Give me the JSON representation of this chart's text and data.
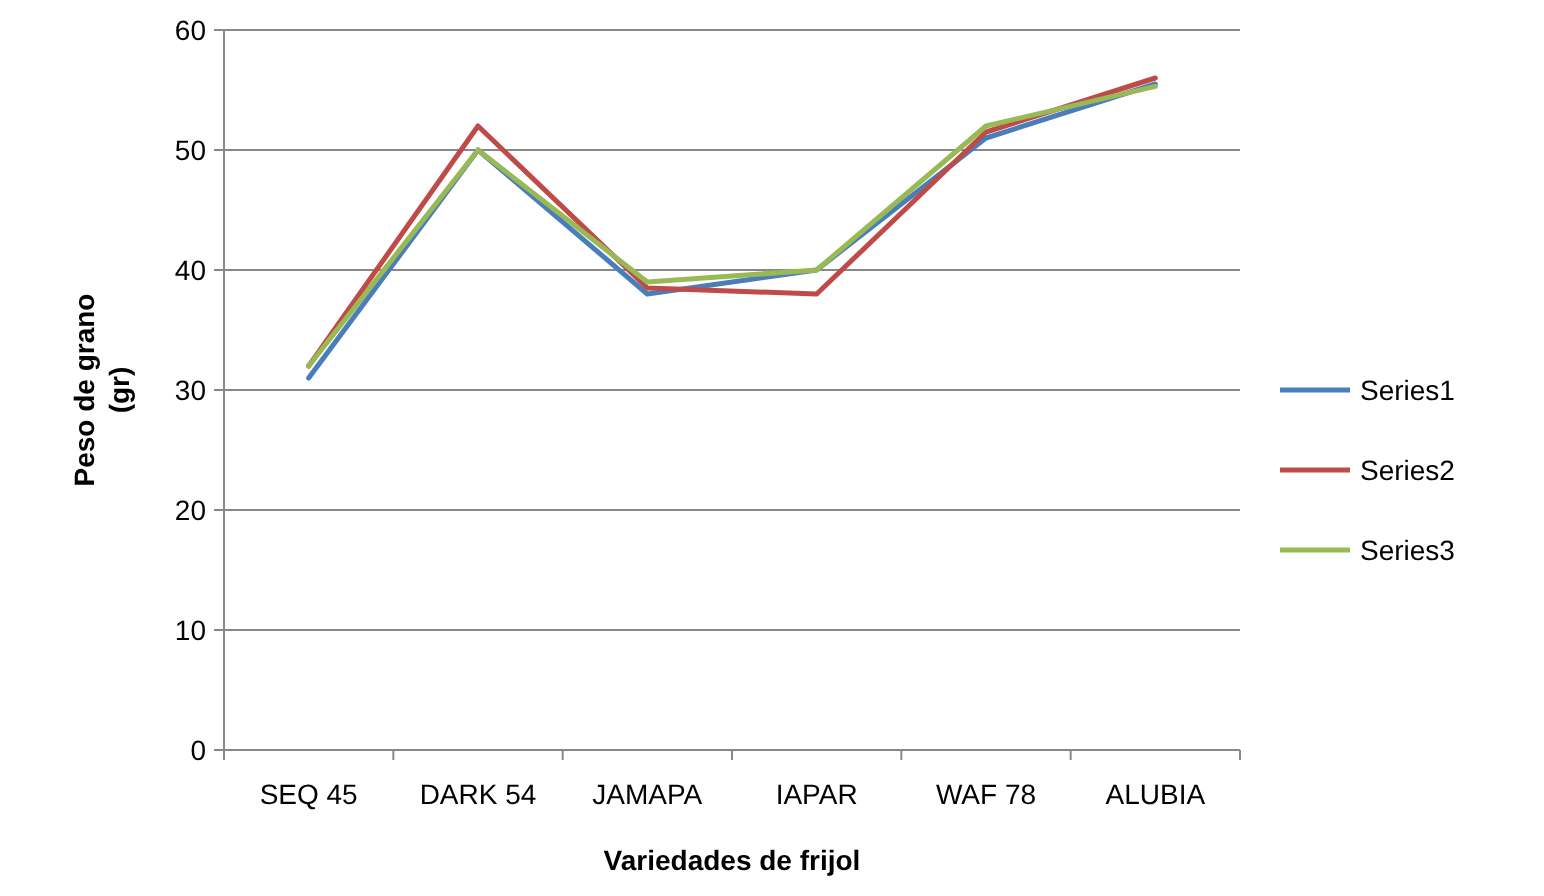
{
  "chart_data": {
    "type": "line",
    "xlabel": "Variedades de frijol",
    "ylabel": "Peso de grano (gr)",
    "categories": [
      "SEQ 45",
      "DARK 54",
      "JAMAPA",
      "IAPAR",
      "WAF 78",
      "ALUBIA"
    ],
    "series": [
      {
        "name": "Series1",
        "color": "#4a7ebb",
        "values": [
          31,
          50,
          38,
          40,
          51,
          55.5
        ]
      },
      {
        "name": "Series2",
        "color": "#be4b48",
        "values": [
          32,
          52,
          38.5,
          38,
          51.5,
          56
        ]
      },
      {
        "name": "Series3",
        "color": "#98b954",
        "values": [
          32,
          50,
          39,
          40,
          52,
          55.3
        ]
      }
    ],
    "ylim": [
      0,
      60
    ],
    "yticks": [
      0,
      10,
      20,
      30,
      40,
      50,
      60
    ],
    "grid": "y",
    "legend": "right",
    "marker": "none",
    "line_style": "solid"
  }
}
